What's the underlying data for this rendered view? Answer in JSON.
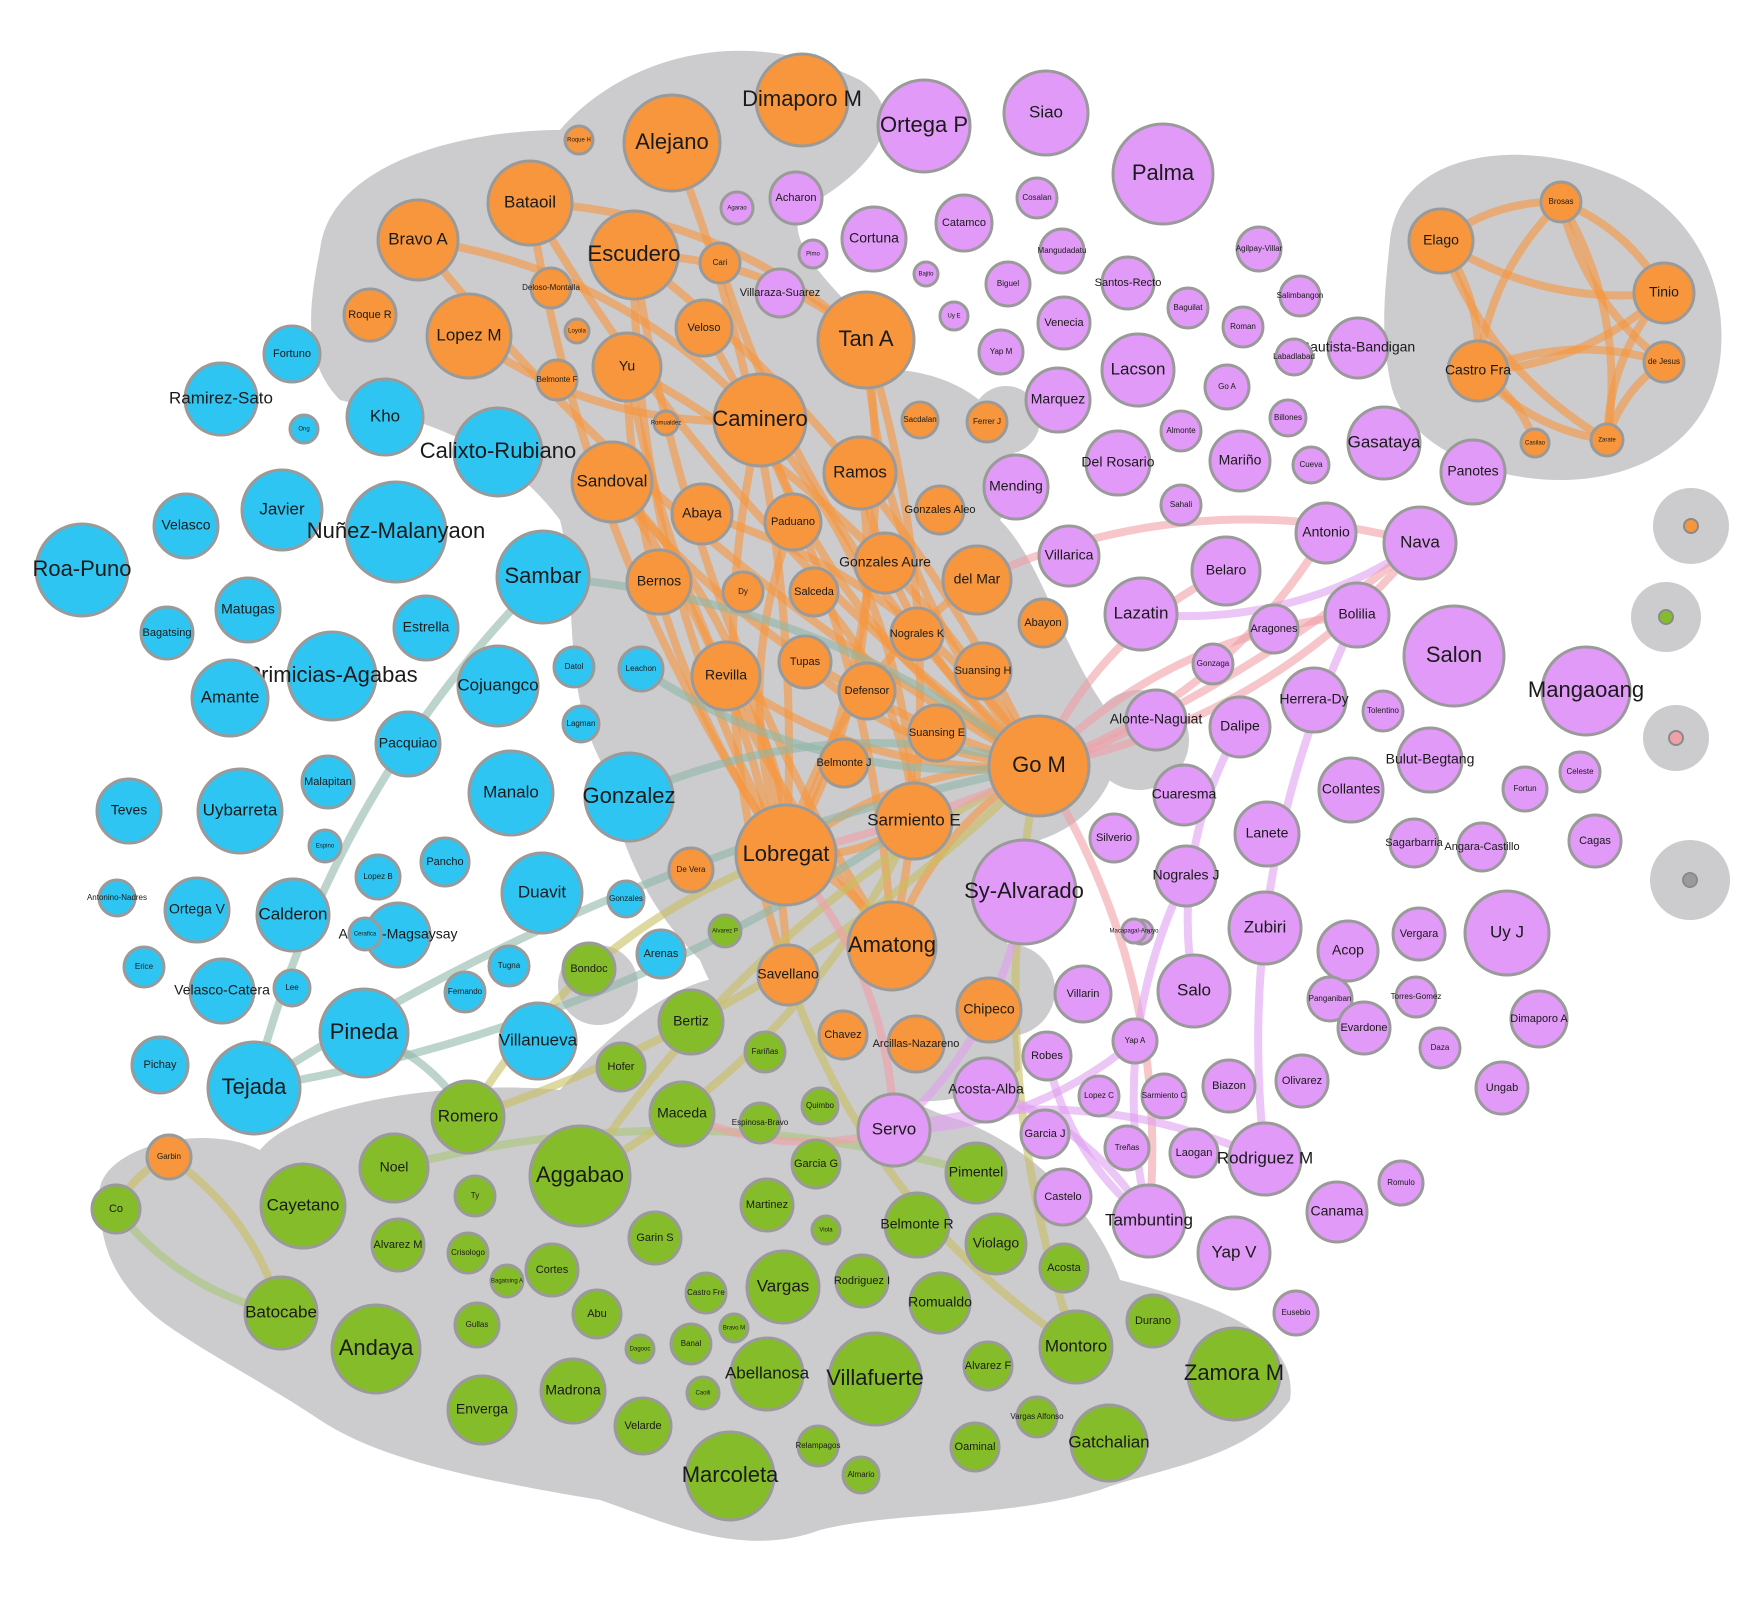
{
  "colors": {
    "orange": "#f7963c",
    "blue": "#2fc5f2",
    "purple": "#e19af7",
    "green": "#85bd2a",
    "cluster": "#cccbcd",
    "pink": "#f0a0a8",
    "edge_green": "#a8c87a",
    "edge_teal": "#90b8a8",
    "edge_olive": "#c8c060",
    "edge_violet": "#e0a0f0"
  },
  "nodes": [
    {
      "label": "Dimaporo M",
      "group": "orange"
    },
    {
      "label": "Alejano",
      "group": "orange"
    },
    {
      "label": "Roque H",
      "group": "orange"
    },
    {
      "label": "Bataoil",
      "group": "orange"
    },
    {
      "label": "Bravo A",
      "group": "orange"
    },
    {
      "label": "Escudero",
      "group": "orange"
    },
    {
      "label": "Cari",
      "group": "orange"
    },
    {
      "label": "Deloso-Montalla",
      "group": "orange"
    },
    {
      "label": "Roque R",
      "group": "orange"
    },
    {
      "label": "Lopez M",
      "group": "orange"
    },
    {
      "label": "Loyola",
      "group": "orange"
    },
    {
      "label": "Veloso",
      "group": "orange"
    },
    {
      "label": "Tan A",
      "group": "orange"
    },
    {
      "label": "Yu",
      "group": "orange"
    },
    {
      "label": "Belmonte F",
      "group": "orange"
    },
    {
      "label": "Caminero",
      "group": "orange"
    },
    {
      "label": "Romualdez",
      "group": "orange"
    },
    {
      "label": "Sacdalan",
      "group": "orange"
    },
    {
      "label": "Ferrer J",
      "group": "orange"
    },
    {
      "label": "Sandoval",
      "group": "orange"
    },
    {
      "label": "Ramos",
      "group": "orange"
    },
    {
      "label": "Abaya",
      "group": "orange"
    },
    {
      "label": "Paduano",
      "group": "orange"
    },
    {
      "label": "Gonzales Aleo",
      "group": "orange"
    },
    {
      "label": "Bernos",
      "group": "orange"
    },
    {
      "label": "Dy",
      "group": "orange"
    },
    {
      "label": "Salceda",
      "group": "orange"
    },
    {
      "label": "Gonzales Aure",
      "group": "orange"
    },
    {
      "label": "del Mar",
      "group": "orange"
    },
    {
      "label": "Abayon",
      "group": "orange"
    },
    {
      "label": "Nograles K",
      "group": "orange"
    },
    {
      "label": "Revilla",
      "group": "orange"
    },
    {
      "label": "Tupas",
      "group": "orange"
    },
    {
      "label": "Suansing H",
      "group": "orange"
    },
    {
      "label": "Defensor",
      "group": "orange"
    },
    {
      "label": "Suansing E",
      "group": "orange"
    },
    {
      "label": "Go M",
      "group": "orange"
    },
    {
      "label": "Belmonte J",
      "group": "orange"
    },
    {
      "label": "Sarmiento E",
      "group": "orange"
    },
    {
      "label": "Lobregat",
      "group": "orange"
    },
    {
      "label": "De Vera",
      "group": "orange"
    },
    {
      "label": "Amatong",
      "group": "orange"
    },
    {
      "label": "Savellano",
      "group": "orange"
    },
    {
      "label": "Chipeco",
      "group": "orange"
    },
    {
      "label": "Chavez",
      "group": "orange"
    },
    {
      "label": "Arcillas-Nazareno",
      "group": "orange"
    },
    {
      "label": "Garbin",
      "group": "orange"
    },
    {
      "label": "Elago",
      "group": "orange"
    },
    {
      "label": "Brosas",
      "group": "orange"
    },
    {
      "label": "Tinio",
      "group": "orange"
    },
    {
      "label": "Castro Fra",
      "group": "orange"
    },
    {
      "label": "de Jesus",
      "group": "orange"
    },
    {
      "label": "Zarate",
      "group": "orange"
    },
    {
      "label": "Casilao",
      "group": "orange"
    },
    {
      "label": "Ortega P",
      "group": "purple"
    },
    {
      "label": "Siao",
      "group": "purple"
    },
    {
      "label": "Palma",
      "group": "purple"
    },
    {
      "label": "Agarao",
      "group": "purple"
    },
    {
      "label": "Acharon",
      "group": "purple"
    },
    {
      "label": "Cortuna",
      "group": "purple"
    },
    {
      "label": "Catamco",
      "group": "purple"
    },
    {
      "label": "Cosalan",
      "group": "purple"
    },
    {
      "label": "Pimo",
      "group": "purple"
    },
    {
      "label": "Villaraza-Suarez",
      "group": "purple"
    },
    {
      "label": "Mangudadatu",
      "group": "purple"
    },
    {
      "label": "Agilpay-Villar",
      "group": "purple"
    },
    {
      "label": "Bajito",
      "group": "purple"
    },
    {
      "label": "Biguel",
      "group": "purple"
    },
    {
      "label": "Santos-Recto",
      "group": "purple"
    },
    {
      "label": "Baguilat",
      "group": "purple"
    },
    {
      "label": "Salimbangon",
      "group": "purple"
    },
    {
      "label": "Uy E",
      "group": "purple"
    },
    {
      "label": "Venecia",
      "group": "purple"
    },
    {
      "label": "Roman",
      "group": "purple"
    },
    {
      "label": "Bautista-Bandigan",
      "group": "purple"
    },
    {
      "label": "Yap M",
      "group": "purple"
    },
    {
      "label": "Labadlabad",
      "group": "purple"
    },
    {
      "label": "Lacson",
      "group": "purple"
    },
    {
      "label": "Go A",
      "group": "purple"
    },
    {
      "label": "Marquez",
      "group": "purple"
    },
    {
      "label": "Gasataya",
      "group": "purple"
    },
    {
      "label": "Almonte",
      "group": "purple"
    },
    {
      "label": "Billones",
      "group": "purple"
    },
    {
      "label": "Mending",
      "group": "purple"
    },
    {
      "label": "Del Rosario",
      "group": "purple"
    },
    {
      "label": "Mariño",
      "group": "purple"
    },
    {
      "label": "Cueva",
      "group": "purple"
    },
    {
      "label": "Panotes",
      "group": "purple"
    },
    {
      "label": "Sahali",
      "group": "purple"
    },
    {
      "label": "Antonio",
      "group": "purple"
    },
    {
      "label": "Nava",
      "group": "purple"
    },
    {
      "label": "Villarica",
      "group": "purple"
    },
    {
      "label": "Belaro",
      "group": "purple"
    },
    {
      "label": "Lazatin",
      "group": "purple"
    },
    {
      "label": "Aragones",
      "group": "purple"
    },
    {
      "label": "Bolilia",
      "group": "purple"
    },
    {
      "label": "Salon",
      "group": "purple"
    },
    {
      "label": "Gonzaga",
      "group": "purple"
    },
    {
      "label": "Herrera-Dy",
      "group": "purple"
    },
    {
      "label": "Mangaoang",
      "group": "purple"
    },
    {
      "label": "Tolentino",
      "group": "purple"
    },
    {
      "label": "Alonte-Naguiat",
      "group": "purple"
    },
    {
      "label": "Dalipe",
      "group": "purple"
    },
    {
      "label": "Bulut-Begtang",
      "group": "purple"
    },
    {
      "label": "Cuaresma",
      "group": "purple"
    },
    {
      "label": "Collantes",
      "group": "purple"
    },
    {
      "label": "Fortun",
      "group": "purple"
    },
    {
      "label": "Celeste",
      "group": "purple"
    },
    {
      "label": "Lanete",
      "group": "purple"
    },
    {
      "label": "Sagarbarria",
      "group": "purple"
    },
    {
      "label": "Angara-Castillo",
      "group": "purple"
    },
    {
      "label": "Cagas",
      "group": "purple"
    },
    {
      "label": "Silverio",
      "group": "purple"
    },
    {
      "label": "Sy-Alvarado",
      "group": "purple"
    },
    {
      "label": "Nograles J",
      "group": "purple"
    },
    {
      "label": "Unabia",
      "group": "purple"
    },
    {
      "label": "Zubiri",
      "group": "purple"
    },
    {
      "label": "Acop",
      "group": "purple"
    },
    {
      "label": "Vergara",
      "group": "purple"
    },
    {
      "label": "Uy J",
      "group": "purple"
    },
    {
      "label": "Macapagal-Arroyo",
      "group": "purple"
    },
    {
      "label": "Salo",
      "group": "purple"
    },
    {
      "label": "Villarin",
      "group": "purple"
    },
    {
      "label": "Panganiban",
      "group": "purple"
    },
    {
      "label": "Torres-Gomez",
      "group": "purple"
    },
    {
      "label": "Evardone",
      "group": "purple"
    },
    {
      "label": "Dimaporo A",
      "group": "purple"
    },
    {
      "label": "Daza",
      "group": "purple"
    },
    {
      "label": "Yap A",
      "group": "purple"
    },
    {
      "label": "Robes",
      "group": "purple"
    },
    {
      "label": "Acosta-Alba",
      "group": "purple"
    },
    {
      "label": "Biazon",
      "group": "purple"
    },
    {
      "label": "Olivarez",
      "group": "purple"
    },
    {
      "label": "Ungab",
      "group": "purple"
    },
    {
      "label": "Servo",
      "group": "purple"
    },
    {
      "label": "Garcia J",
      "group": "purple"
    },
    {
      "label": "Treñas",
      "group": "purple"
    },
    {
      "label": "Laogan",
      "group": "purple"
    },
    {
      "label": "Rodriguez M",
      "group": "purple"
    },
    {
      "label": "Romulo",
      "group": "purple"
    },
    {
      "label": "Castelo",
      "group": "purple"
    },
    {
      "label": "Tambunting",
      "group": "purple"
    },
    {
      "label": "Yap V",
      "group": "purple"
    },
    {
      "label": "Canama",
      "group": "purple"
    },
    {
      "label": "Eusebio",
      "group": "purple"
    },
    {
      "label": "Sarmiento C",
      "group": "purple"
    },
    {
      "label": "Lopez C",
      "group": "purple"
    },
    {
      "label": "Fortuno",
      "group": "blue"
    },
    {
      "label": "Ramirez-Sato",
      "group": "blue"
    },
    {
      "label": "Kho",
      "group": "blue"
    },
    {
      "label": "Calixto-Rubiano",
      "group": "blue"
    },
    {
      "label": "Ong",
      "group": "blue"
    },
    {
      "label": "Javier",
      "group": "blue"
    },
    {
      "label": "Velasco",
      "group": "blue"
    },
    {
      "label": "Nuñez-Malanyaon",
      "group": "blue"
    },
    {
      "label": "Roa-Puno",
      "group": "blue"
    },
    {
      "label": "Sambar",
      "group": "blue"
    },
    {
      "label": "Matugas",
      "group": "blue"
    },
    {
      "label": "Estrella",
      "group": "blue"
    },
    {
      "label": "Bagatsing",
      "group": "blue"
    },
    {
      "label": "Primicias-Agabas",
      "group": "blue"
    },
    {
      "label": "Amante",
      "group": "blue"
    },
    {
      "label": "Cojuangco",
      "group": "blue"
    },
    {
      "label": "Datol",
      "group": "blue"
    },
    {
      "label": "Leachon",
      "group": "blue"
    },
    {
      "label": "Lagman",
      "group": "blue"
    },
    {
      "label": "Pacquiao",
      "group": "blue"
    },
    {
      "label": "Malapitan",
      "group": "blue"
    },
    {
      "label": "Teves",
      "group": "blue"
    },
    {
      "label": "Uybarreta",
      "group": "blue"
    },
    {
      "label": "Manalo",
      "group": "blue"
    },
    {
      "label": "Gonzalez",
      "group": "blue"
    },
    {
      "label": "Lopez B",
      "group": "blue"
    },
    {
      "label": "Pancho",
      "group": "blue"
    },
    {
      "label": "Duavit",
      "group": "blue"
    },
    {
      "label": "Antonino-Nadres",
      "group": "blue"
    },
    {
      "label": "Ortega V",
      "group": "blue"
    },
    {
      "label": "Calderon",
      "group": "blue"
    },
    {
      "label": "Aquino-Magsaysay",
      "group": "blue"
    },
    {
      "label": "Erice",
      "group": "blue"
    },
    {
      "label": "Arenas",
      "group": "blue"
    },
    {
      "label": "Velasco-Catera",
      "group": "blue"
    },
    {
      "label": "Lee",
      "group": "blue"
    },
    {
      "label": "Pineda",
      "group": "blue"
    },
    {
      "label": "Villanueva",
      "group": "blue"
    },
    {
      "label": "Pichay",
      "group": "blue"
    },
    {
      "label": "Tejada",
      "group": "blue"
    },
    {
      "label": "Gonzales",
      "group": "blue"
    },
    {
      "label": "Cerafica",
      "group": "blue"
    },
    {
      "label": "Espino",
      "group": "blue"
    },
    {
      "label": "Fernando",
      "group": "blue"
    },
    {
      "label": "Tugna",
      "group": "blue"
    },
    {
      "label": "Bondoc",
      "group": "green"
    },
    {
      "label": "Bertiz",
      "group": "green"
    },
    {
      "label": "Hofer",
      "group": "green"
    },
    {
      "label": "Fariñas",
      "group": "green"
    },
    {
      "label": "Romero",
      "group": "green"
    },
    {
      "label": "Maceda",
      "group": "green"
    },
    {
      "label": "Espinosa-Bravo",
      "group": "green"
    },
    {
      "label": "Quimbo",
      "group": "green"
    },
    {
      "label": "Co",
      "group": "green"
    },
    {
      "label": "Noel",
      "group": "green"
    },
    {
      "label": "Aggabao",
      "group": "green"
    },
    {
      "label": "Garcia G",
      "group": "green"
    },
    {
      "label": "Pimentel",
      "group": "green"
    },
    {
      "label": "Cayetano",
      "group": "green"
    },
    {
      "label": "Ty",
      "group": "green"
    },
    {
      "label": "Martinez",
      "group": "green"
    },
    {
      "label": "Alvarez M",
      "group": "green"
    },
    {
      "label": "Garin S",
      "group": "green"
    },
    {
      "label": "Belmonte R",
      "group": "green"
    },
    {
      "label": "Viola",
      "group": "green"
    },
    {
      "label": "Violago",
      "group": "green"
    },
    {
      "label": "Batocabe",
      "group": "green"
    },
    {
      "label": "Cortes",
      "group": "green"
    },
    {
      "label": "Vargas",
      "group": "green"
    },
    {
      "label": "Rodriguez I",
      "group": "green"
    },
    {
      "label": "Acosta",
      "group": "green"
    },
    {
      "label": "Andaya",
      "group": "green"
    },
    {
      "label": "Gullas",
      "group": "green"
    },
    {
      "label": "Abu",
      "group": "green"
    },
    {
      "label": "Romualdo",
      "group": "green"
    },
    {
      "label": "Durano",
      "group": "green"
    },
    {
      "label": "Abellanosa",
      "group": "green"
    },
    {
      "label": "Villafuerte",
      "group": "green"
    },
    {
      "label": "Montoro",
      "group": "green"
    },
    {
      "label": "Zamora M",
      "group": "green"
    },
    {
      "label": "Enverga",
      "group": "green"
    },
    {
      "label": "Madrona",
      "group": "green"
    },
    {
      "label": "Velarde",
      "group": "green"
    },
    {
      "label": "Alvarez F",
      "group": "green"
    },
    {
      "label": "Marcoleta",
      "group": "green"
    },
    {
      "label": "Gatchalian",
      "group": "green"
    },
    {
      "label": "Oaminal",
      "group": "green"
    },
    {
      "label": "Vargas Alfonso",
      "group": "green"
    },
    {
      "label": "Relampagos",
      "group": "green"
    },
    {
      "label": "Almario",
      "group": "green"
    },
    {
      "label": "Castro Fre",
      "group": "green"
    },
    {
      "label": "Banal",
      "group": "green"
    },
    {
      "label": "Crisologo",
      "group": "green"
    },
    {
      "label": "Alvarez P",
      "group": "green"
    },
    {
      "label": "Caoili",
      "group": "green"
    },
    {
      "label": "Dagooc",
      "group": "green"
    },
    {
      "label": "Bravo M",
      "group": "green"
    },
    {
      "label": "Bagatsing A",
      "group": "green"
    }
  ],
  "edges": [
    [
      "Bataoil",
      "Go M"
    ],
    [
      "Bataoil",
      "Tan A"
    ],
    [
      "Bataoil",
      "Lobregat"
    ],
    [
      "Bravo A",
      "Caminero"
    ],
    [
      "Bravo A",
      "Go M"
    ],
    [
      "Escudero",
      "Go M"
    ],
    [
      "Escudero",
      "Lobregat"
    ],
    [
      "Escudero",
      "Tan A"
    ],
    [
      "Escudero",
      "Amatong"
    ],
    [
      "Alejano",
      "Lobregat"
    ],
    [
      "Yu",
      "Lobregat"
    ],
    [
      "Yu",
      "Go M"
    ],
    [
      "Yu",
      "Amatong"
    ],
    [
      "Sandoval",
      "Savellano"
    ],
    [
      "Sandoval",
      "Go M"
    ],
    [
      "Sandoval",
      "Lobregat"
    ],
    [
      "Caminero",
      "Go M"
    ],
    [
      "Caminero",
      "Sarmiento E"
    ],
    [
      "Caminero",
      "Savellano"
    ],
    [
      "Tan A",
      "Lobregat"
    ],
    [
      "Tan A",
      "Go M"
    ],
    [
      "Tan A",
      "Amatong"
    ],
    [
      "Ramos",
      "Go M"
    ],
    [
      "Ramos",
      "Lobregat"
    ],
    [
      "Revilla",
      "Go M"
    ],
    [
      "Revilla",
      "Lobregat"
    ],
    [
      "del Mar",
      "Lobregat"
    ],
    [
      "del Mar",
      "Nava"
    ],
    [
      "Go M",
      "Nava"
    ],
    [
      "Go M",
      "Bolilia"
    ],
    [
      "Go M",
      "Lobregat"
    ],
    [
      "Sarmiento E",
      "Lobregat"
    ],
    [
      "Amatong",
      "Lobregat"
    ],
    [
      "Amatong",
      "Go M"
    ],
    [
      "Cari",
      "Go M"
    ],
    [
      "Veloso",
      "Amatong"
    ],
    [
      "Lopez M",
      "Caminero"
    ],
    [
      "Abaya",
      "Go M"
    ],
    [
      "Paduano",
      "Lobregat"
    ],
    [
      "Salceda",
      "Sarmiento E"
    ],
    [
      "Tupas",
      "Go M"
    ],
    [
      "Sambar",
      "Go M"
    ],
    [
      "Sambar",
      "Tejada"
    ],
    [
      "Gonzalez",
      "Go M"
    ],
    [
      "Leachon",
      "Go M"
    ],
    [
      "Tejada",
      "Go M"
    ],
    [
      "Tejada",
      "Sarmiento E"
    ],
    [
      "Pineda",
      "Romero"
    ],
    [
      "Romero",
      "Go M"
    ],
    [
      "Romero",
      "Lobregat"
    ],
    [
      "Garbin",
      "Co"
    ],
    [
      "Garbin",
      "Batocabe"
    ],
    [
      "Co",
      "Batocabe"
    ],
    [
      "Noel",
      "Pimentel"
    ],
    [
      "Aggabao",
      "Sarmiento E"
    ],
    [
      "Aggabao",
      "Go M"
    ],
    [
      "Maceda",
      "Servo"
    ],
    [
      "Lobregat",
      "Servo"
    ],
    [
      "Savellano",
      "Montoro"
    ],
    [
      "Go M",
      "Tambunting"
    ],
    [
      "Go M",
      "Montoro"
    ],
    [
      "Sy-Alvarado",
      "Servo"
    ],
    [
      "Servo",
      "Yap A"
    ],
    [
      "Servo",
      "Rodriguez M"
    ],
    [
      "Dalipe",
      "Salo"
    ],
    [
      "Acosta-Alba",
      "Tambunting"
    ],
    [
      "Robes",
      "Tambunting"
    ],
    [
      "Nava",
      "Lazatin"
    ],
    [
      "Belaro",
      "Go M"
    ],
    [
      "Antonio",
      "Go M"
    ],
    [
      "Nograles J",
      "Tambunting"
    ],
    [
      "Rodriguez M",
      "Bolilia"
    ],
    [
      "Lobregat",
      "Nava"
    ],
    [
      "Elago",
      "Brosas"
    ],
    [
      "Elago",
      "Tinio"
    ],
    [
      "Elago",
      "Castro Fra"
    ],
    [
      "Elago",
      "Zarate"
    ],
    [
      "Brosas",
      "Tinio"
    ],
    [
      "Brosas",
      "Castro Fra"
    ],
    [
      "Brosas",
      "Zarate"
    ],
    [
      "Brosas",
      "de Jesus"
    ],
    [
      "Tinio",
      "Castro Fra"
    ],
    [
      "Tinio",
      "Zarate"
    ],
    [
      "Castro Fra",
      "de Jesus"
    ],
    [
      "Castro Fra",
      "Zarate"
    ],
    [
      "Castro Fra",
      "Casilao"
    ],
    [
      "de Jesus",
      "Zarate"
    ]
  ]
}
